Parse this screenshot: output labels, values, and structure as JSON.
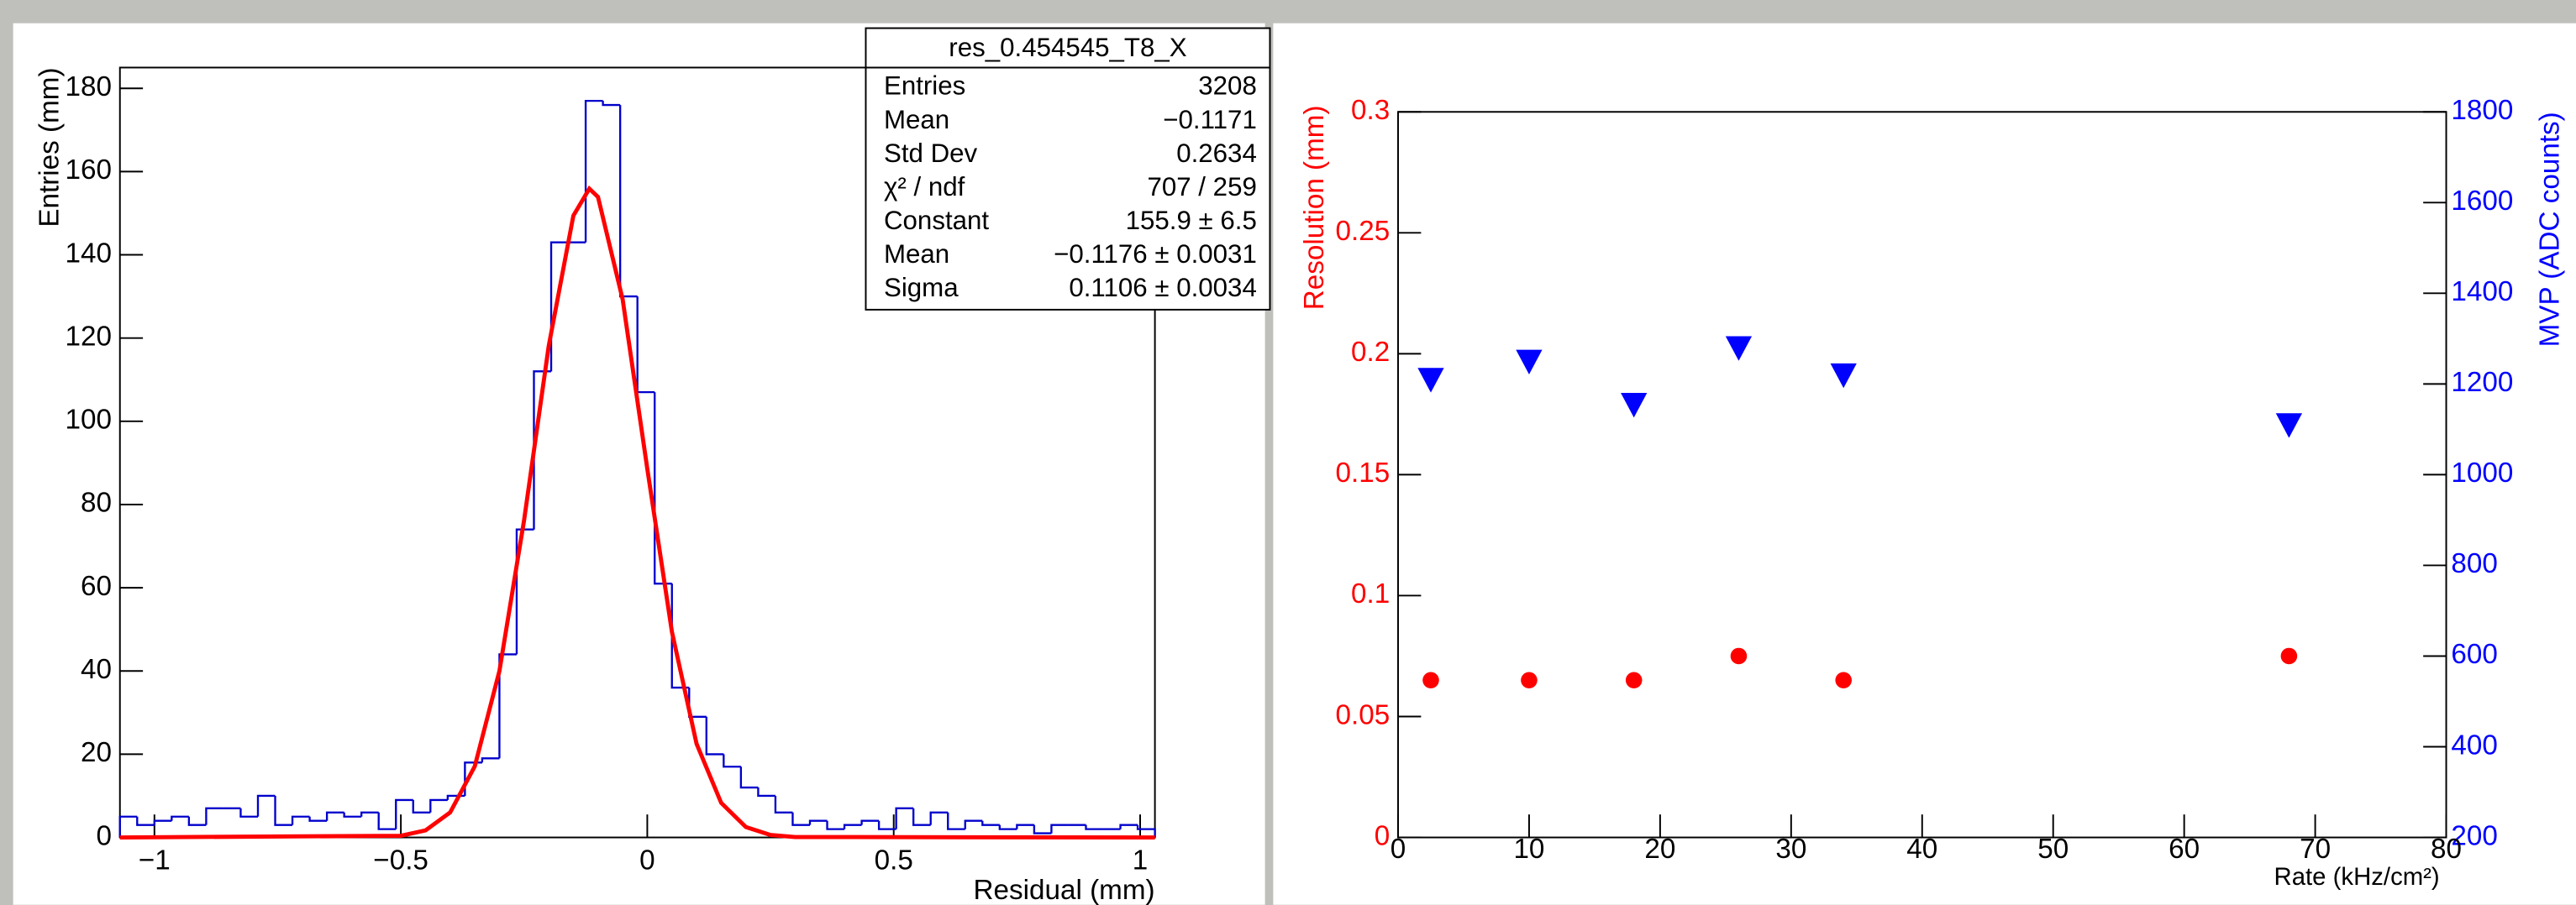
{
  "chart_data": [
    {
      "type": "histogram",
      "xlabel": "Residual (mm)",
      "ylabel": "Entries (mm)",
      "bins": [
        -1.07,
        -1.035,
        -1,
        -0.965,
        -0.93,
        -0.895,
        -0.86,
        -0.825,
        -0.79,
        -0.755,
        -0.72,
        -0.685,
        -0.65,
        -0.615,
        -0.58,
        -0.545,
        -0.51,
        -0.475,
        -0.44,
        -0.405,
        -0.37,
        -0.335,
        -0.3,
        -0.265,
        -0.23,
        -0.195,
        -0.16,
        -0.125,
        -0.09,
        -0.055,
        -0.02,
        0.015,
        0.05,
        0.085,
        0.12,
        0.155,
        0.19,
        0.225,
        0.26,
        0.295,
        0.33,
        0.365,
        0.4,
        0.435,
        0.47,
        0.505,
        0.54,
        0.575,
        0.61,
        0.645,
        0.68,
        0.715,
        0.75,
        0.785,
        0.82,
        0.855,
        0.89,
        0.925,
        0.96,
        0.995,
        1.03
      ],
      "values": [
        5,
        3,
        4,
        5,
        3,
        7,
        7,
        5,
        10,
        3,
        5,
        4,
        6,
        5,
        6,
        2,
        9,
        6,
        9,
        10,
        18,
        19,
        44,
        74,
        112,
        143,
        143,
        177,
        176,
        130,
        107,
        61,
        36,
        29,
        20,
        17,
        12,
        10,
        6,
        3,
        4,
        2,
        3,
        4,
        2,
        7,
        3,
        6,
        2,
        4,
        3,
        2,
        3,
        1,
        3,
        3,
        2,
        2,
        3,
        2
      ],
      "color": "#0000cc",
      "fit": {
        "color": "#ff0000",
        "x": [
          -1.07,
          -0.5,
          -0.45,
          -0.4,
          -0.35,
          -0.3,
          -0.25,
          -0.2,
          -0.15,
          -0.1176,
          -0.1,
          -0.05,
          0,
          0.05,
          0.1,
          0.15,
          0.2,
          0.25,
          0.3,
          1.03
        ],
        "values": [
          0,
          0.4,
          1.7,
          6.0,
          17.1,
          40.0,
          76.2,
          118.1,
          149.4,
          155.9,
          153.9,
          129.3,
          88.6,
          49.4,
          22.5,
          8.3,
          2.5,
          0.6,
          0.1,
          0
        ]
      },
      "xlim": [
        -1.07,
        1.03
      ],
      "ylim": [
        0,
        185
      ],
      "xticks": [
        {
          "value": -1,
          "label": "−1"
        },
        {
          "value": -0.5,
          "label": "−0.5"
        },
        0,
        0.5,
        1
      ],
      "yticks": [
        0,
        20,
        40,
        60,
        80,
        100,
        120,
        140,
        160,
        180
      ],
      "stats": {
        "title": "res_0.454545_T8_X",
        "rows": [
          [
            "Entries",
            "3208"
          ],
          [
            "Mean",
            "−0.1171"
          ],
          [
            "Std Dev",
            "0.2634"
          ],
          [
            "χ² / ndf",
            "707 / 259"
          ],
          [
            "Constant",
            "155.9 ± 6.5"
          ],
          [
            "Mean",
            "−0.1176 ± 0.0031"
          ],
          [
            "Sigma",
            "0.1106 ± 0.0034"
          ]
        ]
      }
    },
    {
      "type": "scatter",
      "xlabel": "Rate (kHz/cm²)",
      "ylabel": "Resolution (mm)",
      "y2label": "MVP (ADC counts)",
      "x": [
        2.5,
        10,
        18,
        26,
        34,
        68
      ],
      "series": [
        {
          "color": "#ff0000",
          "marker": "circle",
          "values": [
            0.065,
            0.065,
            0.065,
            0.075,
            0.065,
            0.075
          ]
        },
        {
          "color": "#0000ff",
          "marker": "triangle-down",
          "axis": "y2",
          "values": [
            1210,
            1250,
            1155,
            1280,
            1220,
            1110
          ]
        }
      ],
      "xlim": [
        0,
        80
      ],
      "ylim": [
        0,
        0.3
      ],
      "y2lim": [
        200,
        1800
      ],
      "xticks": [
        0,
        10,
        20,
        30,
        40,
        50,
        60,
        70,
        80
      ],
      "yticks": [
        0,
        0.05,
        0.1,
        0.15,
        0.2,
        0.25,
        0.3
      ],
      "y2ticks": [
        200,
        400,
        600,
        800,
        1000,
        1200,
        1400,
        1600,
        1800
      ],
      "ycolor": "#ff0000",
      "y2color": "#0000ff"
    }
  ]
}
